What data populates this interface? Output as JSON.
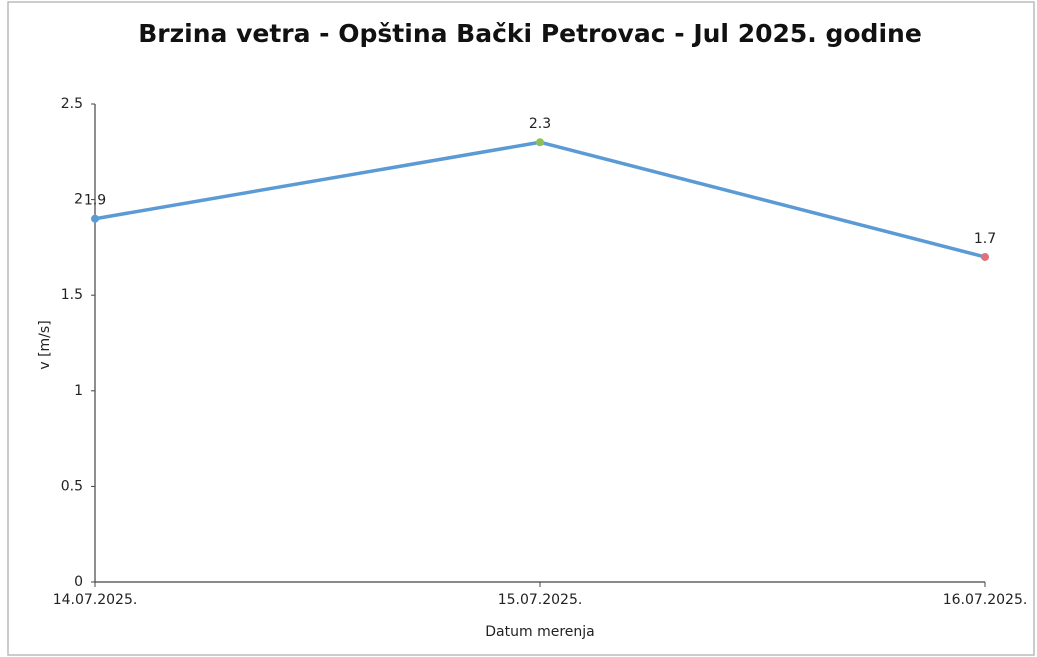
{
  "chart_data": {
    "type": "line",
    "title": "Brzina vetra - Opština Bački Petrovac - Jul 2025. godine",
    "x_label": "Datum merenja",
    "y_label": "v [m/s]",
    "categories": [
      "14.07.2025.",
      "15.07.2025.",
      "16.07.2025."
    ],
    "series": [
      {
        "name": "v",
        "color": "#5b9bd5",
        "values": [
          1.9,
          2.3,
          1.7
        ],
        "point_colors": [
          "#5b9bd5",
          "#8fbf5a",
          "#e0707a"
        ]
      }
    ],
    "ylim": [
      0,
      2.5
    ],
    "yticks": [
      0,
      0.5,
      1,
      1.5,
      2,
      2.5
    ],
    "grid": false,
    "data_labels": true
  }
}
